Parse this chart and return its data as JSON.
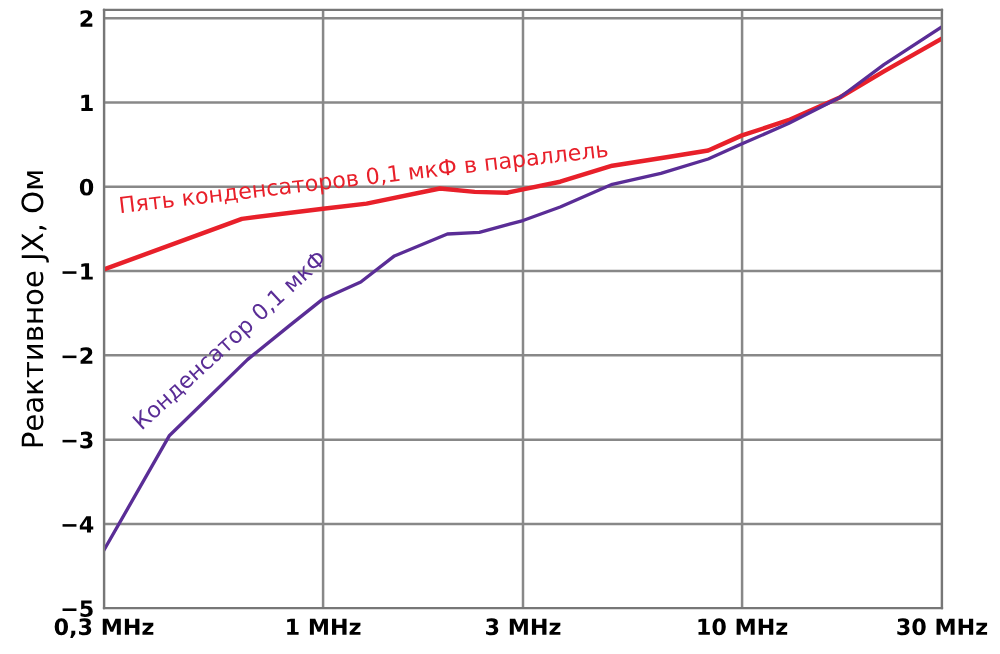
{
  "chart_data": {
    "type": "line",
    "ylabel": "Реактивное JX, Ом",
    "log": "x",
    "xlim": [
      0.3,
      30
    ],
    "xticks": [
      {
        "value": 0.3,
        "label": "0,3 MHz"
      },
      {
        "value": 1,
        "label": "1 MHz"
      },
      {
        "value": 3,
        "label": "3 MHz"
      },
      {
        "value": 10,
        "label": "10 MHz"
      },
      {
        "value": 30,
        "label": "30 MHz"
      }
    ],
    "ylim": [
      -5,
      2.1
    ],
    "yticks": [
      -5,
      -4,
      -3,
      -2,
      -1,
      0,
      1,
      2
    ],
    "grid": true,
    "legend": false,
    "series": [
      {
        "name": "Пять конденсаторов 0,1 мкФ в параллель",
        "color": "#e8202a",
        "x": [
          0.3,
          0.64,
          1,
          1.27,
          1.9,
          2.3,
          2.75,
          3,
          3.68,
          4.9,
          6.6,
          8.3,
          10,
          12.9,
          17.1,
          21.8,
          30
        ],
        "values": [
          -0.98,
          -0.38,
          -0.26,
          -0.2,
          -0.02,
          -0.06,
          -0.07,
          -0.03,
          0.06,
          0.25,
          0.35,
          0.43,
          0.61,
          0.79,
          1.06,
          1.37,
          1.76
        ]
      },
      {
        "name": "Конденсатор 0,1 мкФ",
        "color": "#5a2d96",
        "x": [
          0.3,
          0.43,
          0.66,
          0.83,
          1,
          1.23,
          1.48,
          1.98,
          2.36,
          3,
          3.68,
          4.9,
          6.4,
          8.3,
          10,
          12.9,
          17.1,
          21.8,
          30
        ],
        "values": [
          -4.31,
          -2.95,
          -2.05,
          -1.65,
          -1.33,
          -1.13,
          -0.82,
          -0.56,
          -0.54,
          -0.4,
          -0.24,
          0.03,
          0.16,
          0.33,
          0.51,
          0.75,
          1.06,
          1.45,
          1.9
        ]
      }
    ]
  }
}
